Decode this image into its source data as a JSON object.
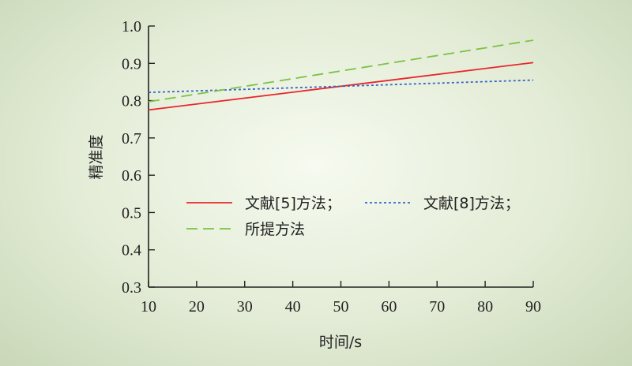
{
  "chart_data": {
    "type": "line",
    "title": "",
    "xlabel": "时间/s",
    "ylabel": "精准度",
    "xlim": [
      10,
      90
    ],
    "ylim": [
      0.3,
      1.0
    ],
    "xticks": [
      10,
      20,
      30,
      40,
      50,
      60,
      70,
      80,
      90
    ],
    "yticks": [
      "0.3",
      "0.4",
      "0.5",
      "0.6",
      "0.7",
      "0.8",
      "0.9",
      "1.0"
    ],
    "grid": false,
    "legend_position": "center",
    "series": [
      {
        "name": "文献[5]方法；",
        "color": "#e8262b",
        "dash": "solid",
        "x": [
          10,
          90
        ],
        "y": [
          0.775,
          0.902
        ]
      },
      {
        "name": "文献[8]方法；",
        "color": "#3566c8",
        "dash": "dotted",
        "x": [
          10,
          90
        ],
        "y": [
          0.822,
          0.855
        ]
      },
      {
        "name": "所提方法",
        "color": "#7cc247",
        "dash": "dashed",
        "x": [
          10,
          90
        ],
        "y": [
          0.797,
          0.962
        ]
      }
    ]
  }
}
